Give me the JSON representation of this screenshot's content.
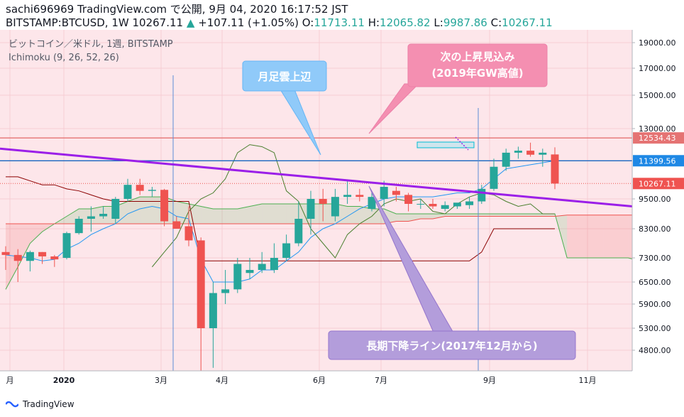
{
  "header": {
    "line1": "sachi696969 TradingView.com で公開, 9月 04, 2020 16:17:52 JST",
    "symbol": "BITSTAMP:BTCUSD, 1W",
    "last": "10267.11",
    "arrow": "▲",
    "change": "+107.11 (+1.05%)",
    "o_label": "O:",
    "o": "11713.11",
    "h_label": "H:",
    "h": "12065.82",
    "l_label": "L:",
    "l": "9987.86",
    "c_label": "C:",
    "c": "10267.11"
  },
  "legend": {
    "title": "ビットコイン／米ドル, 1週, BITSTAMP",
    "indicator": "Ichimoku (9, 26, 52, 26)"
  },
  "footer": {
    "brand": "TradingView"
  },
  "annotations": {
    "monthly_cloud": "月足雲上辺",
    "next_target_line1": "次の上昇見込み",
    "next_target_line2": "(2019年GW高値)",
    "long_downtrend": "長期下降ライン(2017年12月から)"
  },
  "colors": {
    "background": "#fde6ea",
    "up": "#26a69a",
    "down": "#ef5350",
    "trendline": "#9b1fe8",
    "tenkan": "#2196f3",
    "kijun": "#8b0000",
    "span_a": "#4caf50",
    "span_b": "#ef5350",
    "chikou": "#4a7f2e",
    "resistance": "#e57373",
    "hline_blue": "#1565c0",
    "callout_blue": "#90caf9",
    "callout_pink": "#f48fb1",
    "callout_purple": "#b39ddb"
  },
  "chart_data": {
    "type": "candlestick",
    "timeframe": "1W",
    "x_tick_labels": [
      "月",
      "2020",
      "3月",
      "4月",
      "6月",
      "7月",
      "9月",
      "11月"
    ],
    "y_tick_labels": [
      "19000.00",
      "17000.00",
      "15000.00",
      "13000.00",
      "9500.00",
      "8300.00",
      "7300.00",
      "6500.00",
      "5900.00",
      "5300.00",
      "4800.00"
    ],
    "y_ticks": [
      19000,
      17000,
      15000,
      13000,
      9500,
      8300,
      7300,
      6500,
      5900,
      5300,
      4800
    ],
    "price_labels": [
      {
        "value": 12534.43,
        "text": "12534.43",
        "kind": "resistance"
      },
      {
        "value": 11399.56,
        "text": "11399.56",
        "kind": "hline"
      },
      {
        "value": 10267.11,
        "text": "10267.11",
        "kind": "last"
      }
    ],
    "candles": [
      {
        "o": 7500,
        "h": 7700,
        "l": 6900,
        "c": 7400
      },
      {
        "o": 7400,
        "h": 7600,
        "l": 6500,
        "c": 7200
      },
      {
        "o": 7200,
        "h": 7550,
        "l": 6850,
        "c": 7500
      },
      {
        "o": 7500,
        "h": 7500,
        "l": 7100,
        "c": 7350
      },
      {
        "o": 7350,
        "h": 7400,
        "l": 7000,
        "c": 7250
      },
      {
        "o": 7300,
        "h": 8200,
        "l": 7250,
        "c": 8150
      },
      {
        "o": 8150,
        "h": 8800,
        "l": 8100,
        "c": 8700
      },
      {
        "o": 8700,
        "h": 9200,
        "l": 8200,
        "c": 8800
      },
      {
        "o": 8800,
        "h": 9200,
        "l": 8700,
        "c": 8900
      },
      {
        "o": 8700,
        "h": 9600,
        "l": 8500,
        "c": 9500
      },
      {
        "o": 9500,
        "h": 10500,
        "l": 9400,
        "c": 10200
      },
      {
        "o": 10200,
        "h": 10500,
        "l": 9700,
        "c": 9900
      },
      {
        "o": 9900,
        "h": 10100,
        "l": 9600,
        "c": 9950
      },
      {
        "o": 9950,
        "h": 10000,
        "l": 8400,
        "c": 8600
      },
      {
        "o": 8600,
        "h": 8800,
        "l": 8300,
        "c": 8300
      },
      {
        "o": 8400,
        "h": 9200,
        "l": 7700,
        "c": 7900
      },
      {
        "o": 7900,
        "h": 8000,
        "l": 4200,
        "c": 5300
      },
      {
        "o": 5300,
        "h": 6500,
        "l": 4400,
        "c": 6200
      },
      {
        "o": 6200,
        "h": 6900,
        "l": 5900,
        "c": 6300
      },
      {
        "o": 6300,
        "h": 7300,
        "l": 6200,
        "c": 7100
      },
      {
        "o": 6800,
        "h": 7300,
        "l": 6600,
        "c": 6900
      },
      {
        "o": 6900,
        "h": 7500,
        "l": 6800,
        "c": 7100
      },
      {
        "o": 6900,
        "h": 7800,
        "l": 6800,
        "c": 7300
      },
      {
        "o": 7300,
        "h": 8100,
        "l": 7200,
        "c": 7800
      },
      {
        "o": 7800,
        "h": 9400,
        "l": 7700,
        "c": 8700
      },
      {
        "o": 8700,
        "h": 9900,
        "l": 8100,
        "c": 9500
      },
      {
        "o": 9500,
        "h": 10000,
        "l": 8600,
        "c": 9300
      },
      {
        "o": 8800,
        "h": 10000,
        "l": 8600,
        "c": 9600
      },
      {
        "o": 9600,
        "h": 10400,
        "l": 9300,
        "c": 9700
      },
      {
        "o": 9700,
        "h": 10000,
        "l": 9400,
        "c": 9600
      },
      {
        "o": 9100,
        "h": 9900,
        "l": 9000,
        "c": 9600
      },
      {
        "o": 9500,
        "h": 10400,
        "l": 9200,
        "c": 10100
      },
      {
        "o": 9900,
        "h": 10100,
        "l": 9400,
        "c": 9700
      },
      {
        "o": 9700,
        "h": 9800,
        "l": 9000,
        "c": 9300
      },
      {
        "o": 9300,
        "h": 9500,
        "l": 9100,
        "c": 9300
      },
      {
        "o": 9300,
        "h": 9500,
        "l": 9100,
        "c": 9200
      },
      {
        "o": 9100,
        "h": 9400,
        "l": 9000,
        "c": 9250
      },
      {
        "o": 9200,
        "h": 9300,
        "l": 9100,
        "c": 9350
      },
      {
        "o": 9250,
        "h": 9600,
        "l": 9100,
        "c": 9400
      },
      {
        "o": 9400,
        "h": 10200,
        "l": 9300,
        "c": 10000
      },
      {
        "o": 10000,
        "h": 11500,
        "l": 9900,
        "c": 11100
      },
      {
        "o": 11100,
        "h": 12000,
        "l": 10900,
        "c": 11800
      },
      {
        "o": 11800,
        "h": 12100,
        "l": 11500,
        "c": 11900
      },
      {
        "o": 11900,
        "h": 12300,
        "l": 11600,
        "c": 11700
      },
      {
        "o": 11700,
        "h": 12000,
        "l": 11100,
        "c": 11800
      },
      {
        "o": 11713.11,
        "h": 12065.82,
        "l": 9987.86,
        "c": 10267.11
      }
    ],
    "ichimoku": {
      "tenkan": [
        7400,
        7350,
        7300,
        7200,
        7250,
        7600,
        7800,
        8100,
        8300,
        8500,
        8900,
        9100,
        9200,
        9100,
        8800,
        8700,
        7250,
        6500,
        6500,
        6500,
        6600,
        6900,
        6900,
        7200,
        7500,
        8000,
        8300,
        8500,
        8800,
        9100,
        9300,
        9500,
        9600,
        9600,
        9600,
        9600,
        9700,
        9800,
        9800,
        10000,
        10500,
        11000,
        11100,
        11200,
        11300,
        11400
      ],
      "kijun": [
        10600,
        10600,
        10400,
        10200,
        10200,
        10000,
        9900,
        9700,
        9500,
        9400,
        9400,
        9400,
        9400,
        9400,
        9400,
        9400,
        7200,
        7200,
        7200,
        7200,
        7200,
        7200,
        7200,
        7200,
        7200,
        7200,
        7200,
        7200,
        7200,
        7200,
        7200,
        7200,
        7200,
        7200,
        7200,
        7200,
        7200,
        7200,
        7200,
        7500,
        8300,
        8300,
        8300,
        8300,
        8300,
        8300
      ],
      "span_a": [
        6300,
        7000,
        7800,
        8200,
        8500,
        8800,
        9100,
        9100,
        9200,
        9200,
        9400,
        9600,
        9600,
        9600,
        9400,
        9300,
        9200,
        9100,
        9100,
        9100,
        9200,
        9300,
        9300,
        9300,
        9300,
        9300,
        9300,
        9300,
        9200,
        9200,
        9100,
        9100,
        8900,
        8900,
        8900,
        8900,
        8900,
        8900,
        8900,
        8900,
        8900,
        8900,
        8900,
        8900,
        8900,
        8900,
        7300,
        7300,
        7300,
        7300,
        7300,
        7300,
        7200,
        7100,
        7000,
        7100,
        7300,
        7400,
        7600,
        7700,
        7800,
        8000,
        8100,
        8100
      ],
      "span_b": [
        8500,
        8500,
        8500,
        8500,
        8500,
        8500,
        8500,
        8500,
        8500,
        8500,
        8500,
        8500,
        8500,
        8500,
        8500,
        8500,
        8500,
        8500,
        8500,
        8500,
        8500,
        8500,
        8500,
        8500,
        8500,
        8500,
        8500,
        8500,
        8500,
        8500,
        8500,
        8500,
        8600,
        8600,
        8700,
        8700,
        8800,
        8800,
        8800,
        8800,
        8800,
        8800,
        8800,
        8800,
        8800,
        8800,
        8850,
        8850,
        8850,
        8850,
        8850,
        8850,
        8850,
        8850,
        8850,
        8850,
        8850,
        8850,
        8850,
        8850,
        8850,
        8850,
        8850,
        8850
      ],
      "chikou": [
        7000,
        7500,
        8000,
        9000,
        9500,
        9800,
        10500,
        11800,
        12200,
        12100,
        11800,
        9900,
        9400,
        8300,
        7800,
        7300,
        8100,
        8500,
        8800,
        9300,
        9500,
        9400,
        9500,
        9000,
        8900,
        9300,
        9600,
        9800,
        9700,
        9400,
        9200,
        9300,
        8900,
        8900
      ]
    },
    "trendline_from": 12000,
    "trendline_to": 9200,
    "resistance": 12534.43,
    "hline": 11399.56,
    "cloud_future_top": 8850,
    "cloud_future_bottom": 7000,
    "last_price": 10267.11
  }
}
